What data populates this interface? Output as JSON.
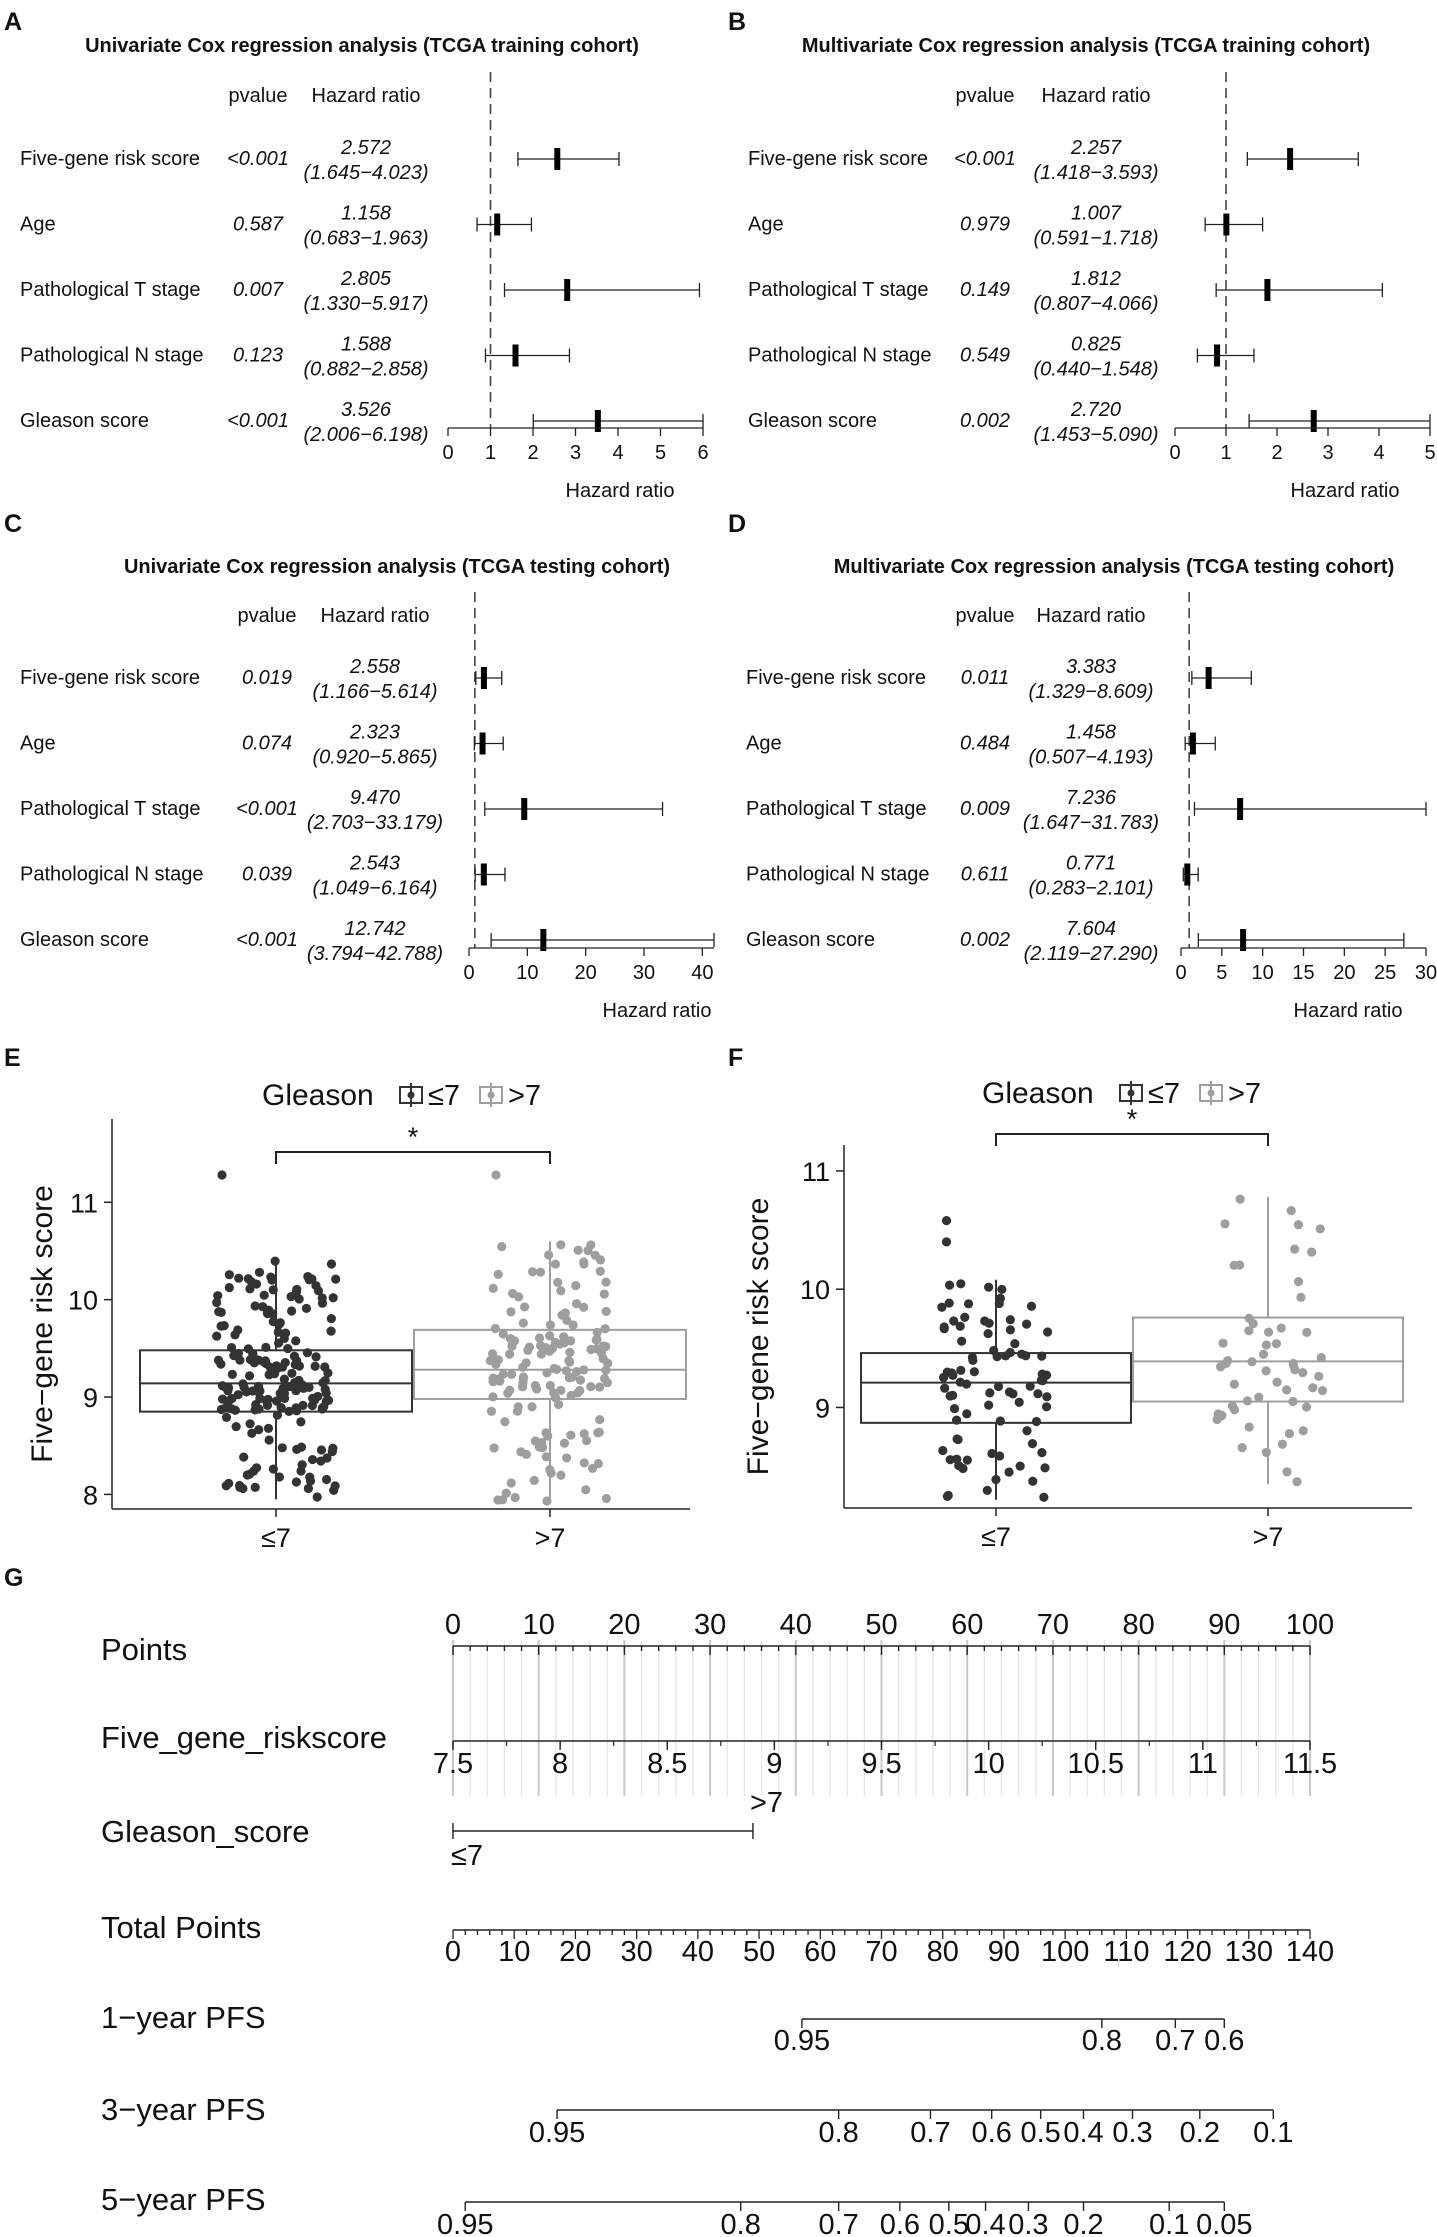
{
  "panels": [
    "A",
    "B",
    "C",
    "D",
    "E",
    "F",
    "G"
  ],
  "chart_data": [
    {
      "type": "forest",
      "title": "Univariate Cox regression analysis (TCGA training cohort)",
      "headers": {
        "pvalue": "pvalue",
        "hr": "Hazard ratio"
      },
      "xlabel": "Hazard ratio",
      "xlim": [
        0,
        6
      ],
      "ticks": [
        "0",
        "1",
        "2",
        "3",
        "4",
        "5",
        "6"
      ],
      "ref": 1,
      "rows": [
        {
          "label": "Five-gene risk score",
          "p": "<0.001",
          "hr": "2.572",
          "ci": "(1.645−4.023)",
          "est": 2.572,
          "lo": 1.645,
          "hi": 4.023
        },
        {
          "label": "Age",
          "p": "0.587",
          "hr": "1.158",
          "ci": "(0.683−1.963)",
          "est": 1.158,
          "lo": 0.683,
          "hi": 1.963
        },
        {
          "label": "Pathological T stage",
          "p": "0.007",
          "hr": "2.805",
          "ci": "(1.330−5.917)",
          "est": 2.805,
          "lo": 1.33,
          "hi": 5.917
        },
        {
          "label": "Pathological N stage",
          "p": "0.123",
          "hr": "1.588",
          "ci": "(0.882−2.858)",
          "est": 1.588,
          "lo": 0.882,
          "hi": 2.858
        },
        {
          "label": "Gleason score",
          "p": "<0.001",
          "hr": "3.526",
          "ci": "(2.006−6.198)",
          "est": 3.526,
          "lo": 2.006,
          "hi": 6.198
        }
      ]
    },
    {
      "type": "forest",
      "title": "Multivariate Cox regression analysis (TCGA training cohort)",
      "headers": {
        "pvalue": "pvalue",
        "hr": "Hazard ratio"
      },
      "xlabel": "Hazard ratio",
      "xlim": [
        0,
        5
      ],
      "ticks": [
        "0",
        "1",
        "2",
        "3",
        "4",
        "5"
      ],
      "ref": 1,
      "rows": [
        {
          "label": "Five-gene risk score",
          "p": "<0.001",
          "hr": "2.257",
          "ci": "(1.418−3.593)",
          "est": 2.257,
          "lo": 1.418,
          "hi": 3.593
        },
        {
          "label": "Age",
          "p": "0.979",
          "hr": "1.007",
          "ci": "(0.591−1.718)",
          "est": 1.007,
          "lo": 0.591,
          "hi": 1.718
        },
        {
          "label": "Pathological T stage",
          "p": "0.149",
          "hr": "1.812",
          "ci": "(0.807−4.066)",
          "est": 1.812,
          "lo": 0.807,
          "hi": 4.066
        },
        {
          "label": "Pathological N stage",
          "p": "0.549",
          "hr": "0.825",
          "ci": "(0.440−1.548)",
          "est": 0.825,
          "lo": 0.44,
          "hi": 1.548
        },
        {
          "label": "Gleason score",
          "p": "0.002",
          "hr": "2.720",
          "ci": "(1.453−5.090)",
          "est": 2.72,
          "lo": 1.453,
          "hi": 5.09
        }
      ]
    },
    {
      "type": "forest",
      "title": "Univariate Cox regression analysis (TCGA testing cohort)",
      "headers": {
        "pvalue": "pvalue",
        "hr": "Hazard ratio"
      },
      "xlabel": "Hazard ratio",
      "xlim": [
        0,
        42
      ],
      "ticks": [
        "0",
        "10",
        "20",
        "30",
        "40"
      ],
      "ref": 1,
      "rows": [
        {
          "label": "Five-gene risk score",
          "p": "0.019",
          "hr": "2.558",
          "ci": "(1.166−5.614)",
          "est": 2.558,
          "lo": 1.166,
          "hi": 5.614
        },
        {
          "label": "Age",
          "p": "0.074",
          "hr": "2.323",
          "ci": "(0.920−5.865)",
          "est": 2.323,
          "lo": 0.92,
          "hi": 5.865
        },
        {
          "label": "Pathological T stage",
          "p": "<0.001",
          "hr": "9.470",
          "ci": "(2.703−33.179)",
          "est": 9.47,
          "lo": 2.703,
          "hi": 33.179
        },
        {
          "label": "Pathological N stage",
          "p": "0.039",
          "hr": "2.543",
          "ci": "(1.049−6.164)",
          "est": 2.543,
          "lo": 1.049,
          "hi": 6.164
        },
        {
          "label": "Gleason score",
          "p": "<0.001",
          "hr": "12.742",
          "ci": "(3.794−42.788)",
          "est": 12.742,
          "lo": 3.794,
          "hi": 42.788
        }
      ]
    },
    {
      "type": "forest",
      "title": "Multivariate Cox regression analysis (TCGA testing cohort)",
      "headers": {
        "pvalue": "pvalue",
        "hr": "Hazard ratio"
      },
      "xlabel": "Hazard ratio",
      "xlim": [
        0,
        30
      ],
      "ticks": [
        "0",
        "5",
        "10",
        "15",
        "20",
        "25",
        "30"
      ],
      "ref": 1,
      "rows": [
        {
          "label": "Five-gene risk score",
          "p": "0.011",
          "hr": "3.383",
          "ci": "(1.329−8.609)",
          "est": 3.383,
          "lo": 1.329,
          "hi": 8.609
        },
        {
          "label": "Age",
          "p": "0.484",
          "hr": "1.458",
          "ci": "(0.507−4.193)",
          "est": 1.458,
          "lo": 0.507,
          "hi": 4.193
        },
        {
          "label": "Pathological T stage",
          "p": "0.009",
          "hr": "7.236",
          "ci": "(1.647−31.783)",
          "est": 7.236,
          "lo": 1.647,
          "hi": 31.783
        },
        {
          "label": "Pathological N stage",
          "p": "0.611",
          "hr": "0.771",
          "ci": "(0.283−2.101)",
          "est": 0.771,
          "lo": 0.283,
          "hi": 2.101
        },
        {
          "label": "Gleason score",
          "p": "0.002",
          "hr": "7.604",
          "ci": "(2.119−27.290)",
          "est": 7.604,
          "lo": 2.119,
          "hi": 27.29
        }
      ]
    },
    {
      "type": "boxplot",
      "legend_title": "Gleason",
      "legend_items": [
        "≤7",
        ">7"
      ],
      "categories": [
        "≤7",
        ">7"
      ],
      "ylabel": "Five−gene risk score",
      "ylim": [
        7.85,
        11.65
      ],
      "yticks": [
        "8",
        "9",
        "10",
        "11"
      ],
      "significance": "*",
      "colors": [
        "#333333",
        "#9e9e9e"
      ],
      "groups": [
        {
          "name": "≤7",
          "q1": 8.85,
          "median": 9.14,
          "q3": 9.48,
          "whisker_low": 7.95,
          "whisker_high": 10.4,
          "outliers": [
            11.28
          ],
          "n_points": 190
        },
        {
          "name": ">7",
          "q1": 8.98,
          "median": 9.28,
          "q3": 9.69,
          "whisker_low": 7.93,
          "whisker_high": 10.6,
          "outliers": [
            11.28
          ],
          "n_points": 150
        }
      ]
    },
    {
      "type": "boxplot",
      "legend_title": "Gleason",
      "legend_items": [
        "≤7",
        ">7"
      ],
      "categories": [
        "≤7",
        ">7"
      ],
      "ylabel": "Five−gene risk score",
      "ylim": [
        8.15,
        11.05
      ],
      "yticks": [
        "9",
        "10",
        "11"
      ],
      "significance": "*",
      "colors": [
        "#333333",
        "#9e9e9e"
      ],
      "groups": [
        {
          "name": "≤7",
          "q1": 8.87,
          "median": 9.21,
          "q3": 9.46,
          "whisker_low": 8.22,
          "whisker_high": 10.08,
          "outliers": [
            10.58,
            10.4
          ],
          "n_points": 85
        },
        {
          "name": ">7",
          "q1": 9.05,
          "median": 9.39,
          "q3": 9.76,
          "whisker_low": 8.35,
          "whisker_high": 10.78,
          "outliers": [],
          "n_points": 55
        }
      ]
    },
    {
      "type": "nomogram",
      "rows": [
        {
          "label": "Points",
          "ticks": [
            "0",
            "10",
            "20",
            "30",
            "40",
            "50",
            "60",
            "70",
            "80",
            "90",
            "100"
          ],
          "values": [
            0,
            10,
            20,
            30,
            40,
            50,
            60,
            70,
            80,
            90,
            100
          ],
          "points": [
            0,
            100
          ]
        },
        {
          "label": "Five_gene_riskscore",
          "ticks": [
            "7.5",
            "8",
            "8.5",
            "9",
            "9.5",
            "10",
            "10.5",
            "11",
            "11.5"
          ],
          "values": [
            7.5,
            8,
            8.5,
            9,
            9.5,
            10,
            10.5,
            11,
            11.5
          ],
          "points": [
            0,
            100
          ]
        },
        {
          "label": "Gleason_score",
          "ticks": [
            "≤7",
            ">7"
          ],
          "values": [
            0,
            1
          ],
          "points": [
            0,
            35
          ]
        },
        {
          "label": "Total Points",
          "ticks": [
            "0",
            "10",
            "20",
            "30",
            "40",
            "50",
            "60",
            "70",
            "80",
            "90",
            "100",
            "110",
            "120",
            "130",
            "140"
          ],
          "values": [
            0,
            10,
            20,
            30,
            40,
            50,
            60,
            70,
            80,
            90,
            100,
            110,
            120,
            130,
            140
          ],
          "total": [
            0,
            140
          ]
        },
        {
          "label": "1−year PFS",
          "ticks": [
            "0.95",
            "0.8",
            "0.7",
            "0.6"
          ],
          "total_positions": [
            57,
            106,
            118,
            126
          ]
        },
        {
          "label": "3−year PFS",
          "ticks": [
            "0.95",
            "0.8",
            "0.7",
            "0.6",
            "0.5",
            "0.4",
            "0.3",
            "0.2",
            "0.1"
          ],
          "total_positions": [
            17,
            63,
            78,
            88,
            96,
            103,
            111,
            122,
            134
          ]
        },
        {
          "label": "5−year PFS",
          "ticks": [
            "0.95",
            "0.8",
            "0.7",
            "0.6",
            "0.5",
            "0.4",
            "0.3",
            "0.2",
            "0.1",
            "0.05"
          ],
          "total_positions": [
            2,
            47,
            63,
            73,
            81,
            87,
            94,
            103,
            117,
            126
          ]
        }
      ]
    }
  ]
}
